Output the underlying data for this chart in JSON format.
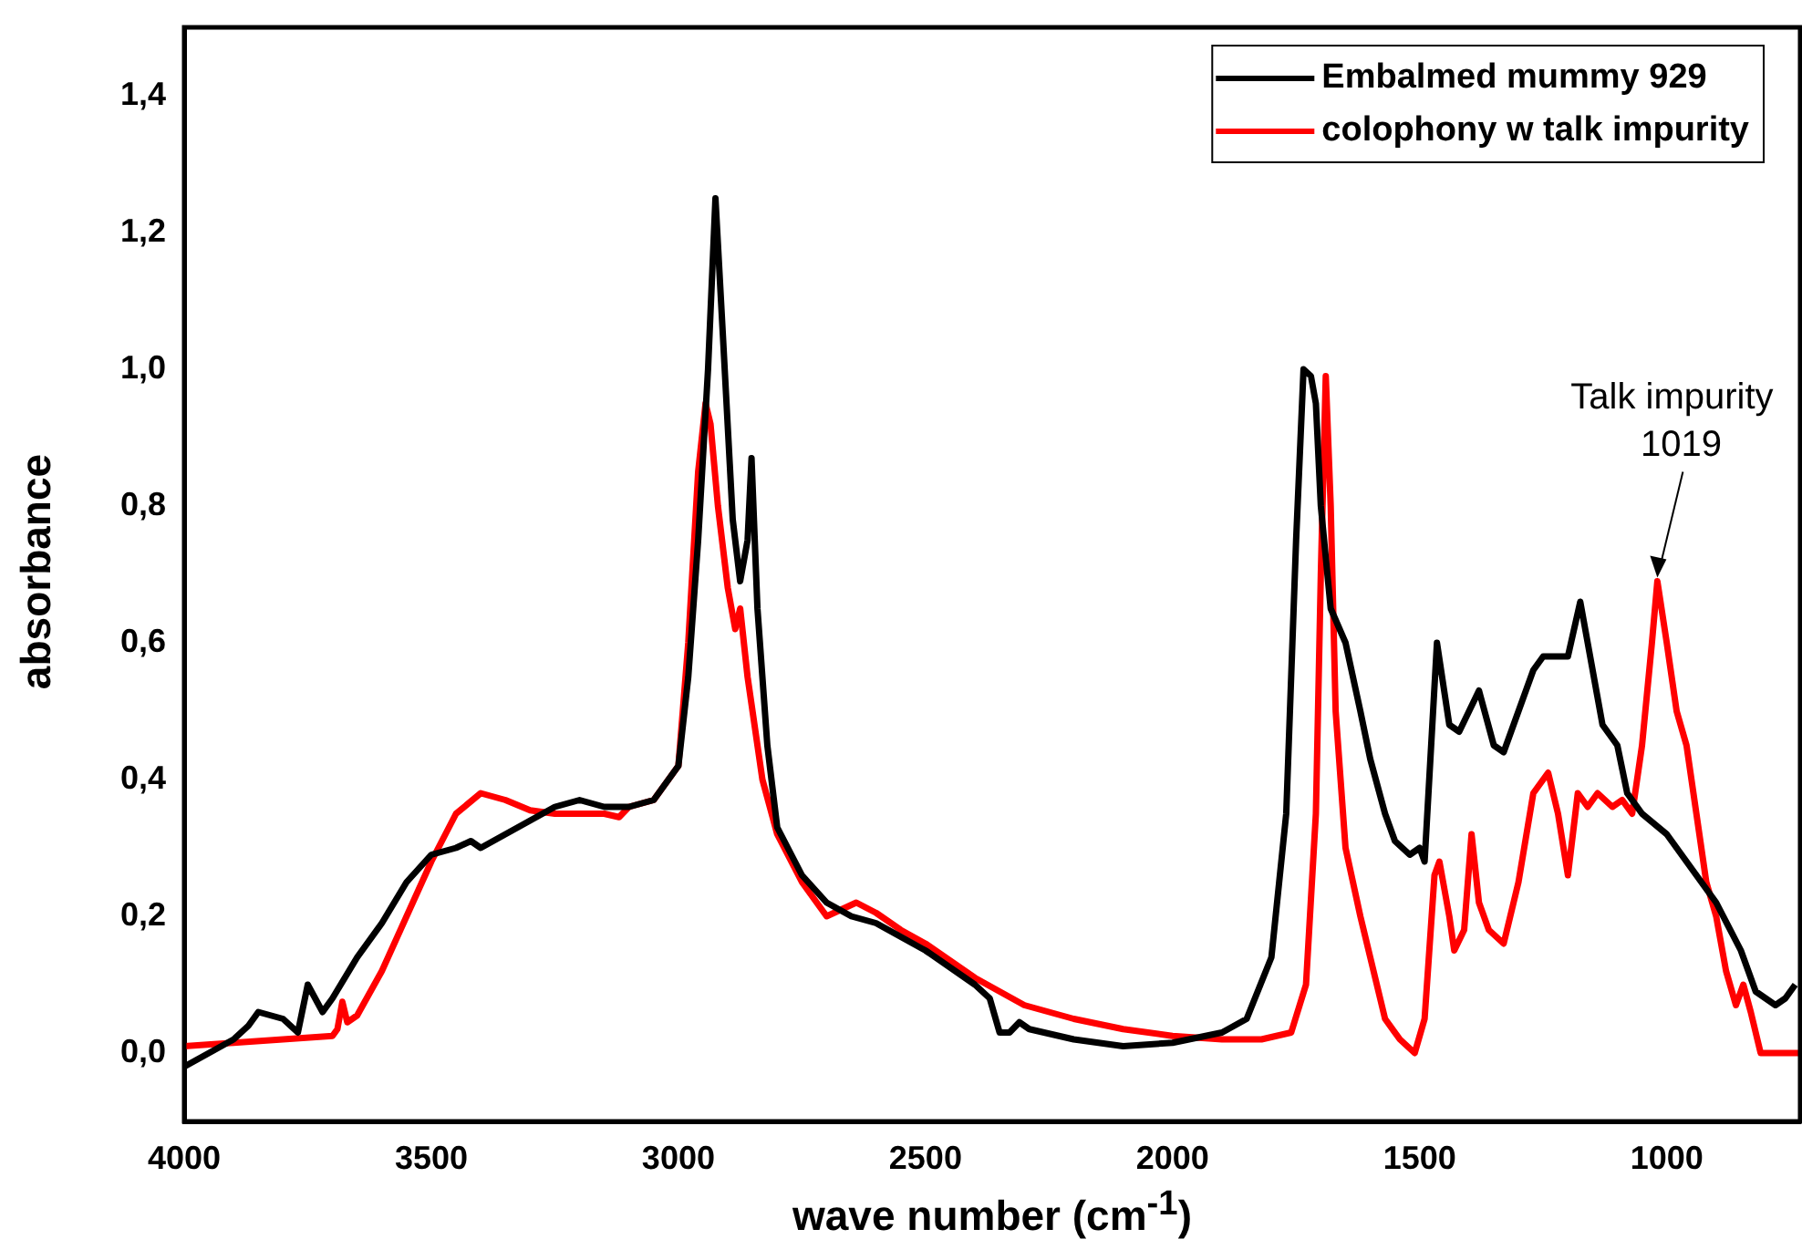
{
  "chart_data": {
    "type": "line",
    "xlabel": "wave number (cm$^{-1}$)",
    "ylabel": "absorbance",
    "xlim": [
      4000,
      730
    ],
    "xticks": [
      4000,
      3500,
      3000,
      2500,
      2000,
      1500,
      1000
    ],
    "ylim": [
      -0.1,
      1.5
    ],
    "yticks": [
      {
        "value": 0,
        "label": "0,0"
      },
      {
        "value": 0.2,
        "label": "0,2"
      },
      {
        "value": 0.4,
        "label": "0,4"
      },
      {
        "value": 0.6,
        "label": "0,6"
      },
      {
        "value": 0.8,
        "label": "0,8"
      },
      {
        "value": 1.0,
        "label": "1,0"
      },
      {
        "value": 1.2,
        "label": "1,2"
      },
      {
        "value": 1.4,
        "label": "1,4"
      }
    ],
    "grid": false,
    "legend": "top right",
    "line_style": "solid",
    "annotations": [
      {
        "text": "Talk impurity\n1019",
        "x": 1019,
        "y": 0.69
      }
    ],
    "series": [
      {
        "name": "Embalmed mummy 929",
        "color": "#000000",
        "x": [
          4000,
          3950,
          3900,
          3870,
          3850,
          3800,
          3770,
          3750,
          3720,
          3700,
          3650,
          3600,
          3550,
          3500,
          3450,
          3420,
          3400,
          3350,
          3300,
          3250,
          3200,
          3150,
          3100,
          3050,
          3000,
          2980,
          2960,
          2940,
          2925,
          2910,
          2890,
          2875,
          2860,
          2852,
          2840,
          2820,
          2800,
          2750,
          2700,
          2650,
          2600,
          2500,
          2400,
          2370,
          2350,
          2330,
          2310,
          2290,
          2200,
          2100,
          2000,
          1900,
          1850,
          1800,
          1770,
          1750,
          1735,
          1720,
          1710,
          1700,
          1680,
          1650,
          1620,
          1600,
          1570,
          1550,
          1520,
          1500,
          1490,
          1465,
          1440,
          1420,
          1380,
          1350,
          1330,
          1300,
          1270,
          1250,
          1200,
          1175,
          1160,
          1130,
          1100,
          1080,
          1050,
          1000,
          950,
          900,
          850,
          820,
          800,
          780,
          760,
          740
        ],
        "values": [
          -0.02,
          0.0,
          0.02,
          0.04,
          0.06,
          0.05,
          0.03,
          0.1,
          0.06,
          0.08,
          0.14,
          0.19,
          0.25,
          0.29,
          0.3,
          0.31,
          0.3,
          0.32,
          0.34,
          0.36,
          0.37,
          0.36,
          0.36,
          0.37,
          0.42,
          0.55,
          0.75,
          1.0,
          1.25,
          1.05,
          0.78,
          0.69,
          0.75,
          0.87,
          0.65,
          0.45,
          0.33,
          0.26,
          0.22,
          0.2,
          0.19,
          0.15,
          0.1,
          0.08,
          0.03,
          0.03,
          0.045,
          0.035,
          0.02,
          0.01,
          0.015,
          0.03,
          0.05,
          0.14,
          0.35,
          0.75,
          1.0,
          0.99,
          0.95,
          0.8,
          0.65,
          0.6,
          0.5,
          0.43,
          0.35,
          0.31,
          0.29,
          0.3,
          0.28,
          0.6,
          0.48,
          0.47,
          0.53,
          0.45,
          0.44,
          0.5,
          0.56,
          0.58,
          0.58,
          0.66,
          0.6,
          0.48,
          0.45,
          0.38,
          0.35,
          0.32,
          0.27,
          0.22,
          0.15,
          0.09,
          0.08,
          0.07,
          0.08,
          0.1
        ]
      },
      {
        "name": "colophony w talk impurity",
        "color": "#ff0000",
        "x": [
          4000,
          3900,
          3800,
          3700,
          3690,
          3680,
          3670,
          3650,
          3600,
          3550,
          3500,
          3450,
          3400,
          3350,
          3300,
          3250,
          3200,
          3150,
          3120,
          3100,
          3050,
          3000,
          2980,
          2960,
          2945,
          2935,
          2920,
          2900,
          2885,
          2875,
          2860,
          2830,
          2800,
          2750,
          2700,
          2670,
          2640,
          2600,
          2550,
          2500,
          2400,
          2300,
          2200,
          2100,
          2000,
          1900,
          1820,
          1760,
          1730,
          1710,
          1700,
          1690,
          1680,
          1670,
          1650,
          1620,
          1600,
          1570,
          1540,
          1510,
          1490,
          1470,
          1460,
          1440,
          1430,
          1410,
          1395,
          1380,
          1360,
          1330,
          1300,
          1270,
          1240,
          1220,
          1200,
          1180,
          1160,
          1140,
          1110,
          1090,
          1070,
          1050,
          1030,
          1019,
          1000,
          980,
          960,
          940,
          920,
          900,
          880,
          860,
          845,
          830,
          810,
          730
        ],
        "values": [
          0.01,
          0.015,
          0.02,
          0.025,
          0.035,
          0.075,
          0.045,
          0.055,
          0.12,
          0.2,
          0.28,
          0.35,
          0.38,
          0.37,
          0.355,
          0.35,
          0.35,
          0.35,
          0.345,
          0.36,
          0.37,
          0.42,
          0.6,
          0.85,
          0.95,
          0.92,
          0.8,
          0.68,
          0.62,
          0.65,
          0.55,
          0.4,
          0.32,
          0.25,
          0.2,
          0.21,
          0.22,
          0.205,
          0.18,
          0.16,
          0.11,
          0.07,
          0.05,
          0.035,
          0.025,
          0.02,
          0.02,
          0.03,
          0.1,
          0.35,
          0.7,
          0.99,
          0.8,
          0.5,
          0.3,
          0.2,
          0.14,
          0.05,
          0.02,
          0.0,
          0.05,
          0.26,
          0.28,
          0.2,
          0.15,
          0.18,
          0.32,
          0.22,
          0.18,
          0.16,
          0.25,
          0.38,
          0.41,
          0.35,
          0.26,
          0.38,
          0.36,
          0.38,
          0.36,
          0.37,
          0.35,
          0.45,
          0.6,
          0.69,
          0.6,
          0.5,
          0.45,
          0.35,
          0.25,
          0.2,
          0.12,
          0.07,
          0.1,
          0.06,
          0.0,
          0.0
        ]
      }
    ]
  }
}
